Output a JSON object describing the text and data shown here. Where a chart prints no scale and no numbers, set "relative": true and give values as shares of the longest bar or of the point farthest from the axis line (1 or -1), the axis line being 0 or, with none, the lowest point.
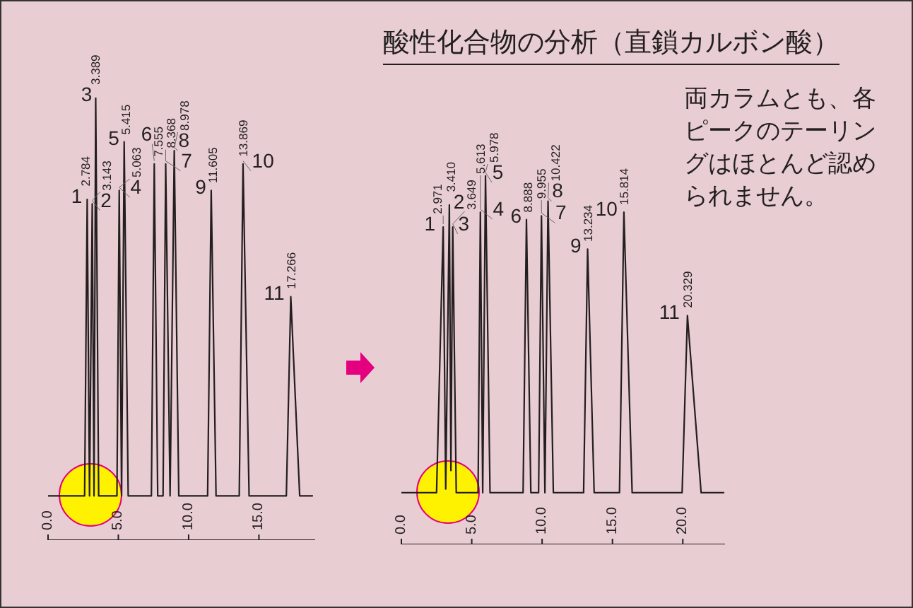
{
  "chart_data": [
    {
      "type": "line",
      "relative": true,
      "tick_labels": "x",
      "xlim": [
        0,
        19
      ],
      "xticks": [
        {
          "value": 0,
          "label": "0.0"
        },
        {
          "value": 5,
          "label": "5.0"
        },
        {
          "value": 10,
          "label": "10.0"
        },
        {
          "value": 15,
          "label": "15.0"
        }
      ],
      "series": [
        {
          "color": "#231f20",
          "x": [
            0,
            2.6,
            2.784,
            2.95,
            3.143,
            3.27,
            3.389,
            3.6,
            4.9,
            5.063,
            5.23,
            5.415,
            5.7,
            7.35,
            7.555,
            7.8,
            8.18,
            8.368,
            8.68,
            8.978,
            9.3,
            11.35,
            11.605,
            11.95,
            13.6,
            13.869,
            14.3,
            16.95,
            17.266,
            17.9,
            18.8
          ],
          "values": [
            0.1,
            0.1,
            0.77,
            0.1,
            0.76,
            0.1,
            1,
            0.1,
            0.1,
            0.79,
            0.1,
            0.9,
            0.1,
            0.1,
            0.85,
            0.1,
            0.1,
            0.85,
            0.1,
            0.88,
            0.1,
            0.1,
            0.79,
            0.1,
            0.1,
            0.85,
            0.1,
            0.1,
            0.55,
            0.1,
            0.1
          ]
        }
      ],
      "annotations": [
        {
          "text": "1",
          "x": 2.784,
          "y": 0.77
        },
        {
          "text": "2.784",
          "x": 2.784,
          "y": 0.77
        },
        {
          "text": "2",
          "x": 3.143,
          "y": 0.76
        },
        {
          "text": "3.143",
          "x": 3.143,
          "y": 0.76
        },
        {
          "text": "3",
          "x": 3.389,
          "y": 1
        },
        {
          "text": "3.389",
          "x": 3.389,
          "y": 1
        },
        {
          "text": "4",
          "x": 5.063,
          "y": 0.79
        },
        {
          "text": "5.063",
          "x": 5.063,
          "y": 0.79
        },
        {
          "text": "5",
          "x": 5.415,
          "y": 0.9
        },
        {
          "text": "5.415",
          "x": 5.415,
          "y": 0.9
        },
        {
          "text": "6",
          "x": 7.555,
          "y": 0.85
        },
        {
          "text": "7.555",
          "x": 7.555,
          "y": 0.85
        },
        {
          "text": "7",
          "x": 8.368,
          "y": 0.85
        },
        {
          "text": "8.368",
          "x": 8.368,
          "y": 0.85
        },
        {
          "text": "8",
          "x": 8.978,
          "y": 0.88
        },
        {
          "text": "8.978",
          "x": 8.978,
          "y": 0.88
        },
        {
          "text": "9",
          "x": 11.605,
          "y": 0.79
        },
        {
          "text": "11.605",
          "x": 11.605,
          "y": 0.79
        },
        {
          "text": "10",
          "x": 13.869,
          "y": 0.85
        },
        {
          "text": "13.869",
          "x": 13.869,
          "y": 0.85
        },
        {
          "text": "11",
          "x": 17.266,
          "y": 0.55
        },
        {
          "text": "17.266",
          "x": 17.266,
          "y": 0.55
        }
      ]
    },
    {
      "type": "line",
      "relative": true,
      "tick_labels": "x",
      "title": "酸性化合物の分析（直鎖カルボン酸）",
      "xlim": [
        0,
        23
      ],
      "xticks": [
        {
          "value": 0,
          "label": "0.0"
        },
        {
          "value": 5,
          "label": "5.0"
        },
        {
          "value": 10,
          "label": "10.0"
        },
        {
          "value": 15,
          "label": "15.0"
        },
        {
          "value": 20,
          "label": "20.0"
        }
      ],
      "series": [
        {
          "color": "#231f20",
          "x": [
            0,
            2.5,
            2.971,
            3.15,
            3.41,
            3.52,
            3.649,
            3.9,
            5.45,
            5.613,
            5.78,
            5.978,
            6.3,
            8.65,
            8.888,
            9.2,
            9.75,
            9.955,
            10.2,
            10.422,
            10.8,
            12.95,
            13.234,
            13.7,
            15.5,
            15.814,
            16.4,
            19.95,
            20.329,
            21.3,
            22.9
          ],
          "values": [
            0.14,
            0.14,
            0.86,
            0.15,
            0.92,
            0.2,
            0.86,
            0.14,
            0.14,
            0.9,
            0.14,
            1,
            0.14,
            0.14,
            0.88,
            0.14,
            0.14,
            0.89,
            0.14,
            0.93,
            0.14,
            0.14,
            0.8,
            0.14,
            0.14,
            0.9,
            0.14,
            0.14,
            0.62,
            0.14,
            0.14
          ]
        }
      ],
      "annotations": [
        {
          "text": "1",
          "x": 2.971,
          "y": 0.86
        },
        {
          "text": "2.971",
          "x": 2.971,
          "y": 0.86
        },
        {
          "text": "2",
          "x": 3.41,
          "y": 0.92
        },
        {
          "text": "3.410",
          "x": 3.41,
          "y": 0.92
        },
        {
          "text": "3",
          "x": 3.649,
          "y": 0.86
        },
        {
          "text": "3.649",
          "x": 3.649,
          "y": 0.86
        },
        {
          "text": "4",
          "x": 5.613,
          "y": 0.9
        },
        {
          "text": "5.613",
          "x": 5.613,
          "y": 0.9
        },
        {
          "text": "5",
          "x": 5.978,
          "y": 1
        },
        {
          "text": "5.978",
          "x": 5.978,
          "y": 1
        },
        {
          "text": "6",
          "x": 8.888,
          "y": 0.88
        },
        {
          "text": "8.888",
          "x": 8.888,
          "y": 0.88
        },
        {
          "text": "7",
          "x": 9.955,
          "y": 0.89
        },
        {
          "text": "9.955",
          "x": 9.955,
          "y": 0.89
        },
        {
          "text": "8",
          "x": 10.422,
          "y": 0.93
        },
        {
          "text": "10.422",
          "x": 10.422,
          "y": 0.93
        },
        {
          "text": "9",
          "x": 13.234,
          "y": 0.8
        },
        {
          "text": "13.234",
          "x": 13.234,
          "y": 0.8
        },
        {
          "text": "10",
          "x": 15.814,
          "y": 0.9
        },
        {
          "text": "15.814",
          "x": 15.814,
          "y": 0.9
        },
        {
          "text": "11",
          "x": 20.329,
          "y": 0.62
        },
        {
          "text": "20.329",
          "x": 20.329,
          "y": 0.62
        },
        "両カラムとも、各ピークのテーリングはほとんど認められません。"
      ]
    }
  ]
}
